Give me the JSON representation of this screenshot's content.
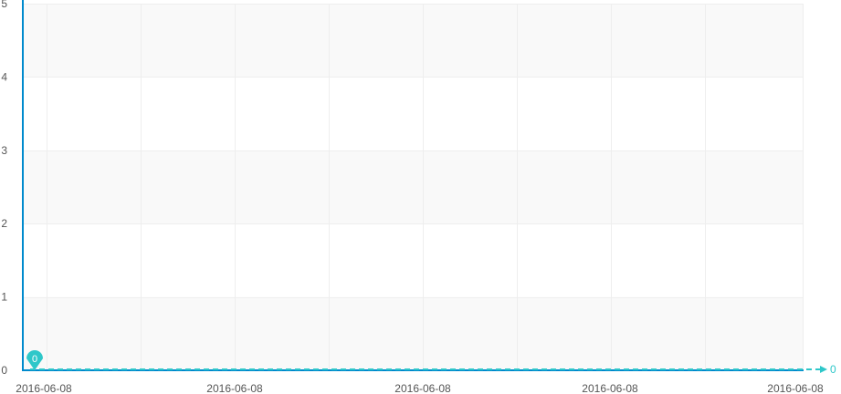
{
  "chart_data": {
    "type": "line",
    "x": [
      "2016-06-08",
      "2016-06-08",
      "2016-06-08",
      "2016-06-08",
      "2016-06-08"
    ],
    "x_tick_labels": [
      "2016-06-08",
      "2016-06-08",
      "2016-06-08",
      "2016-06-08",
      "2016-06-08"
    ],
    "series": [
      {
        "values": [
          0,
          0,
          0,
          0,
          0
        ],
        "color": "#2ec7c9",
        "line_style": "dashed"
      }
    ],
    "ylim": [
      0,
      5
    ],
    "y_ticks": [
      0,
      1,
      2,
      3,
      4,
      5
    ],
    "grid": true,
    "alternating_band_color": "#f9f9f9",
    "axis_color": "#008acd",
    "markers": [
      {
        "label": "0",
        "value": 0,
        "type": "pin",
        "color": "#2ec7c9"
      }
    ],
    "end_value_label": "0",
    "end_arrow": true
  }
}
